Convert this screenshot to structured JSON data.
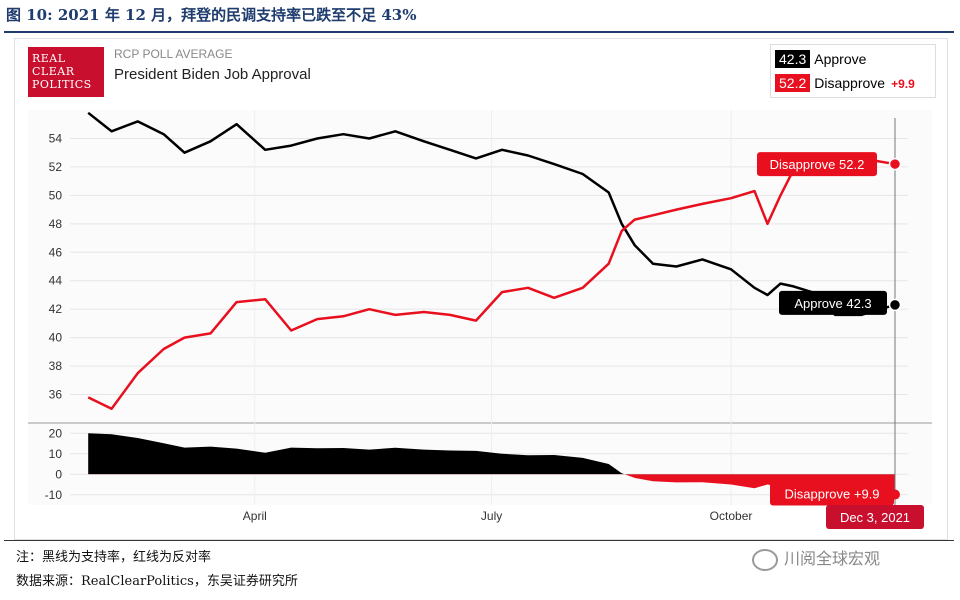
{
  "figure": {
    "title": "图 10:  2021 年 12 月，拜登的民调支持率已跌至不足 43%",
    "note": "注：黑线为支持率，红线为反对率",
    "source": "数据来源：RealClearPolitics，东吴证券研究所",
    "watermark": "川阅全球宏观"
  },
  "header": {
    "logo_lines": [
      "REAL",
      "CLEAR",
      "POLITICS"
    ],
    "subtitle": "RCP POLL AVERAGE",
    "title": "President Biden Job Approval"
  },
  "legend": {
    "approve_value": "42.3",
    "approve_label": "Approve",
    "disapprove_value": "52.2",
    "disapprove_label": "Disapprove",
    "spread": "+9.9"
  },
  "callouts": {
    "disapprove": "Disapprove 52.2",
    "approve": "Approve 42.3",
    "spread": "Disapprove +9.9",
    "date": "Dec 3, 2021"
  },
  "colors": {
    "approve": "#000000",
    "disapprove": "#e8101e",
    "grid": "#e6e6e6",
    "title_blue": "#1f3c6e"
  },
  "chart_data": [
    {
      "type": "line",
      "title": "President Biden Job Approval",
      "x": [
        "2021-01-27",
        "2021-02-05",
        "2021-02-15",
        "2021-02-25",
        "2021-03-05",
        "2021-03-15",
        "2021-03-25",
        "2021-04-05",
        "2021-04-15",
        "2021-04-25",
        "2021-05-05",
        "2021-05-15",
        "2021-05-25",
        "2021-06-05",
        "2021-06-15",
        "2021-06-25",
        "2021-07-05",
        "2021-07-15",
        "2021-07-25",
        "2021-08-05",
        "2021-08-15",
        "2021-08-20",
        "2021-08-25",
        "2021-09-01",
        "2021-09-10",
        "2021-09-20",
        "2021-10-01",
        "2021-10-10",
        "2021-10-15",
        "2021-10-20",
        "2021-10-25",
        "2021-11-01",
        "2021-11-10",
        "2021-11-20",
        "2021-12-03"
      ],
      "series": [
        {
          "name": "Approve",
          "values": [
            55.8,
            54.5,
            55.2,
            54.3,
            53.0,
            53.8,
            55.0,
            53.2,
            53.5,
            54.0,
            54.3,
            54.0,
            54.5,
            53.8,
            53.2,
            52.6,
            53.2,
            52.8,
            52.2,
            51.5,
            50.2,
            48.0,
            46.5,
            45.2,
            45.0,
            45.5,
            44.8,
            43.5,
            43.0,
            43.8,
            43.6,
            43.2,
            41.6,
            41.6,
            42.3
          ]
        },
        {
          "name": "Disapprove",
          "values": [
            35.8,
            35.0,
            37.5,
            39.2,
            40.0,
            40.3,
            42.5,
            42.7,
            40.5,
            41.3,
            41.5,
            42.0,
            41.6,
            41.8,
            41.6,
            41.2,
            43.2,
            43.5,
            42.8,
            43.5,
            45.2,
            47.5,
            48.3,
            48.6,
            49.0,
            49.4,
            49.8,
            50.3,
            48.0,
            50.0,
            51.8,
            51.5,
            51.8,
            52.6,
            52.2
          ]
        }
      ],
      "ylim": [
        34,
        56
      ],
      "yticks": [
        36,
        38,
        40,
        42,
        44,
        46,
        48,
        50,
        52,
        54
      ],
      "xticks": [
        "April",
        "July",
        "October"
      ],
      "grid": true,
      "legend": "top-right"
    },
    {
      "type": "area",
      "title": "Spread",
      "x": [
        "2021-01-27",
        "2021-02-05",
        "2021-02-15",
        "2021-02-25",
        "2021-03-05",
        "2021-03-15",
        "2021-03-25",
        "2021-04-05",
        "2021-04-15",
        "2021-04-25",
        "2021-05-05",
        "2021-05-15",
        "2021-05-25",
        "2021-06-05",
        "2021-06-15",
        "2021-06-25",
        "2021-07-05",
        "2021-07-15",
        "2021-07-25",
        "2021-08-05",
        "2021-08-15",
        "2021-08-20",
        "2021-08-25",
        "2021-09-01",
        "2021-09-10",
        "2021-09-20",
        "2021-10-01",
        "2021-10-10",
        "2021-10-15",
        "2021-10-20",
        "2021-10-25",
        "2021-11-01",
        "2021-11-10",
        "2021-11-20",
        "2021-12-03"
      ],
      "values": [
        20.0,
        19.5,
        17.7,
        15.1,
        13.0,
        13.5,
        12.5,
        10.5,
        13.0,
        12.7,
        12.8,
        12.0,
        12.9,
        12.0,
        11.6,
        11.4,
        10.0,
        9.3,
        9.4,
        8.0,
        5.0,
        0.5,
        -1.8,
        -3.4,
        -4.0,
        -3.9,
        -5.0,
        -6.8,
        -5.0,
        -6.2,
        -8.2,
        -8.3,
        -10.2,
        -11.0,
        -9.9
      ],
      "ylim": [
        -15,
        25
      ],
      "yticks": [
        -10,
        0,
        10,
        20
      ],
      "grid": true
    }
  ]
}
